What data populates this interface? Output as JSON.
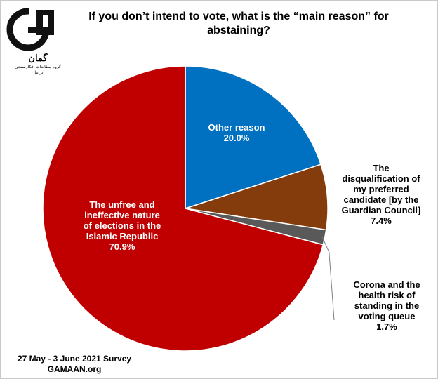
{
  "chart_data": {
    "type": "pie",
    "title": "If you don’t intend to vote, what is the “main reason” for abstaining?",
    "slices": [
      {
        "label_lines": [
          "Other reason"
        ],
        "value": 20.0,
        "value_label": "20.0%",
        "color": "#0070c0"
      },
      {
        "label_lines": [
          "The",
          "disqualification of",
          "my preferred",
          "candidate [by the",
          "Guardian Council]"
        ],
        "value": 7.4,
        "value_label": "7.4%",
        "color": "#843c0c"
      },
      {
        "label_lines": [
          "Corona and the",
          "health risk of",
          "standing in the",
          "voting queue"
        ],
        "value": 1.7,
        "value_label": "1.7%",
        "color": "#595959"
      },
      {
        "label_lines": [
          "The unfree and",
          "ineffective nature",
          "of elections in the",
          "Islamic Republic"
        ],
        "value": 70.9,
        "value_label": "70.9%",
        "color": "#c00000"
      }
    ]
  },
  "logo": {
    "fa_name": "گمان",
    "fa_sub": "گروه مطالعات افکارسنجی ایرانیان"
  },
  "footer": {
    "line1": "27 May - 3 June 2021 Survey",
    "line2": "GAMAAN.org"
  }
}
